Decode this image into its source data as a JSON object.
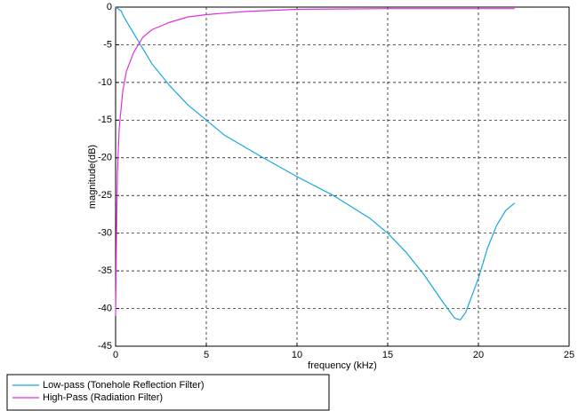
{
  "chart_data": {
    "type": "line",
    "xlabel": "frequency (kHz)",
    "ylabel": "magnitude(dB)",
    "xlim": [
      0,
      25
    ],
    "xticks": [
      0,
      5,
      10,
      15,
      20,
      25
    ],
    "ylim": [
      -45,
      0
    ],
    "yticks": [
      0,
      -5,
      -10,
      -15,
      -20,
      -25,
      -30,
      -35,
      -40,
      -45
    ],
    "grid": true,
    "legend": "bottom-left",
    "series": [
      {
        "name": "Low-pass (Tonehole Reflection Filter)",
        "color": "#1aa6e0",
        "x": [
          0,
          0.3,
          0.5,
          1,
          1.5,
          2,
          2.5,
          3,
          4,
          5,
          6,
          8,
          10,
          12,
          14,
          15,
          16,
          17,
          18,
          18.7,
          19,
          19.3,
          20,
          20.5,
          21,
          21.5,
          22
        ],
        "values": [
          0,
          -0.5,
          -1.5,
          -3.5,
          -5.5,
          -7.5,
          -9,
          -10.5,
          -13,
          -15,
          -17,
          -19.8,
          -22.5,
          -25,
          -28,
          -30,
          -32.5,
          -35.5,
          -39,
          -41.3,
          -41.5,
          -40.5,
          -36,
          -32,
          -29,
          -27,
          -26
        ]
      },
      {
        "name": "High-Pass (Radiation Filter)",
        "color": "#e030e0",
        "x": [
          0,
          0.05,
          0.1,
          0.2,
          0.4,
          0.6,
          1,
          1.5,
          2,
          3,
          4,
          5,
          7,
          10,
          15,
          22
        ],
        "values": [
          -41,
          -30,
          -22,
          -16,
          -11,
          -8.5,
          -6,
          -4,
          -3,
          -2,
          -1.3,
          -1,
          -0.6,
          -0.3,
          -0.2,
          -0.2
        ]
      }
    ]
  }
}
